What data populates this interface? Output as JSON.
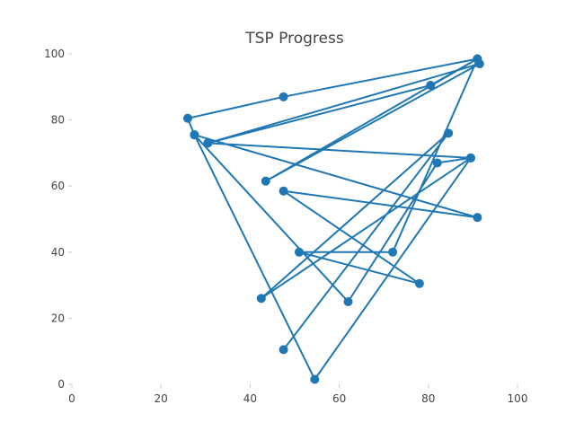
{
  "chart_data": {
    "type": "line",
    "title": "TSP Progress",
    "xlabel": "",
    "ylabel": "",
    "xlim": [
      0,
      100
    ],
    "ylim": [
      0,
      100
    ],
    "x_ticks": [
      0,
      20,
      40,
      60,
      80,
      100
    ],
    "y_ticks": [
      0,
      20,
      40,
      60,
      80,
      100
    ],
    "grid": false,
    "legend": "none",
    "series": [
      {
        "color": "#1f77b4",
        "marker": "circle",
        "points": [
          {
            "x": 47.5,
            "y": 10.5
          },
          {
            "x": 84.5,
            "y": 76.0
          },
          {
            "x": 42.5,
            "y": 26.0
          },
          {
            "x": 89.5,
            "y": 68.5
          },
          {
            "x": 54.5,
            "y": 1.5
          },
          {
            "x": 27.5,
            "y": 75.5
          },
          {
            "x": 91.0,
            "y": 50.5
          },
          {
            "x": 47.5,
            "y": 58.5
          },
          {
            "x": 78.0,
            "y": 30.5
          },
          {
            "x": 51.0,
            "y": 40.0
          },
          {
            "x": 72.0,
            "y": 40.0
          },
          {
            "x": 91.0,
            "y": 98.5
          },
          {
            "x": 43.5,
            "y": 61.5
          },
          {
            "x": 91.5,
            "y": 97.0
          },
          {
            "x": 30.5,
            "y": 73.0
          },
          {
            "x": 89.5,
            "y": 68.5
          },
          {
            "x": 82.0,
            "y": 67.0
          },
          {
            "x": 62.0,
            "y": 25.0
          },
          {
            "x": 27.5,
            "y": 75.5
          },
          {
            "x": 26.0,
            "y": 80.5
          },
          {
            "x": 47.5,
            "y": 87.0
          },
          {
            "x": 91.0,
            "y": 98.5
          },
          {
            "x": 80.5,
            "y": 90.5
          },
          {
            "x": 30.5,
            "y": 73.0
          }
        ]
      }
    ]
  }
}
